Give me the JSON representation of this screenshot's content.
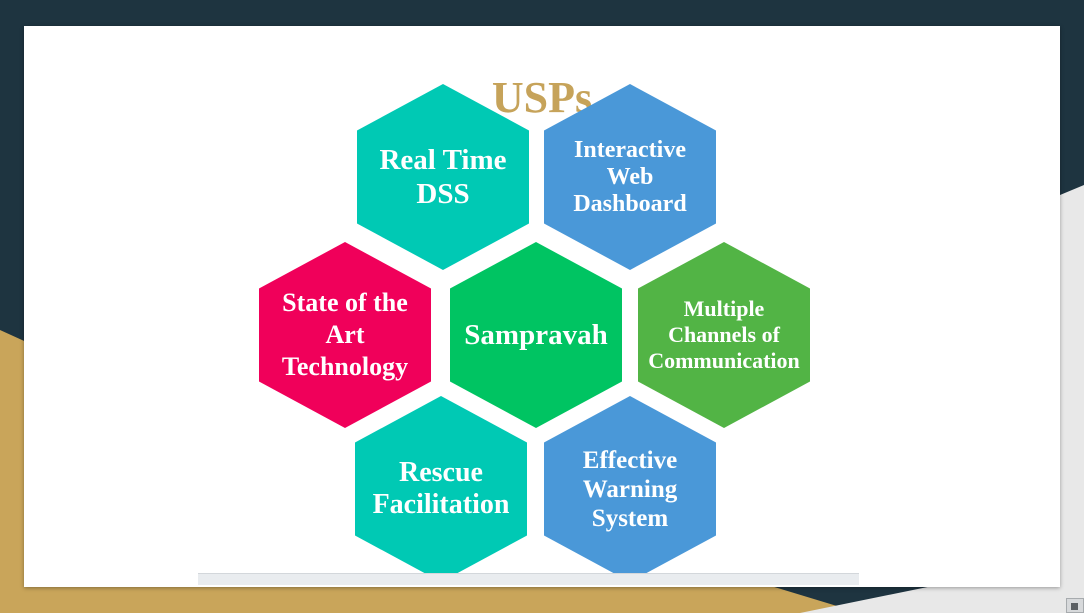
{
  "title": "USPs",
  "colors": {
    "title": "#c6a35a",
    "teal": "#00c9b4",
    "blue": "#4a98d8",
    "pink": "#f0005a",
    "green_center": "#00c462",
    "green_right": "#52b445",
    "background_dark": "#1e3440",
    "background_gold": "#c9a55a"
  },
  "hexagons": [
    {
      "id": "realtime",
      "label": "Real Time\nDSS",
      "color": "teal"
    },
    {
      "id": "dashboard",
      "label": "Interactive\nWeb\nDashboard",
      "color": "blue"
    },
    {
      "id": "art",
      "label": "State of the\nArt\nTechnology",
      "color": "pink"
    },
    {
      "id": "center",
      "label": "Sampravah",
      "color": "green_center"
    },
    {
      "id": "channels",
      "label": "Multiple\nChannels of\nCommunication",
      "color": "green_right"
    },
    {
      "id": "rescue",
      "label": "Rescue\nFacilitation",
      "color": "teal"
    },
    {
      "id": "warning",
      "label": "Effective\nWarning\nSystem",
      "color": "blue"
    }
  ]
}
